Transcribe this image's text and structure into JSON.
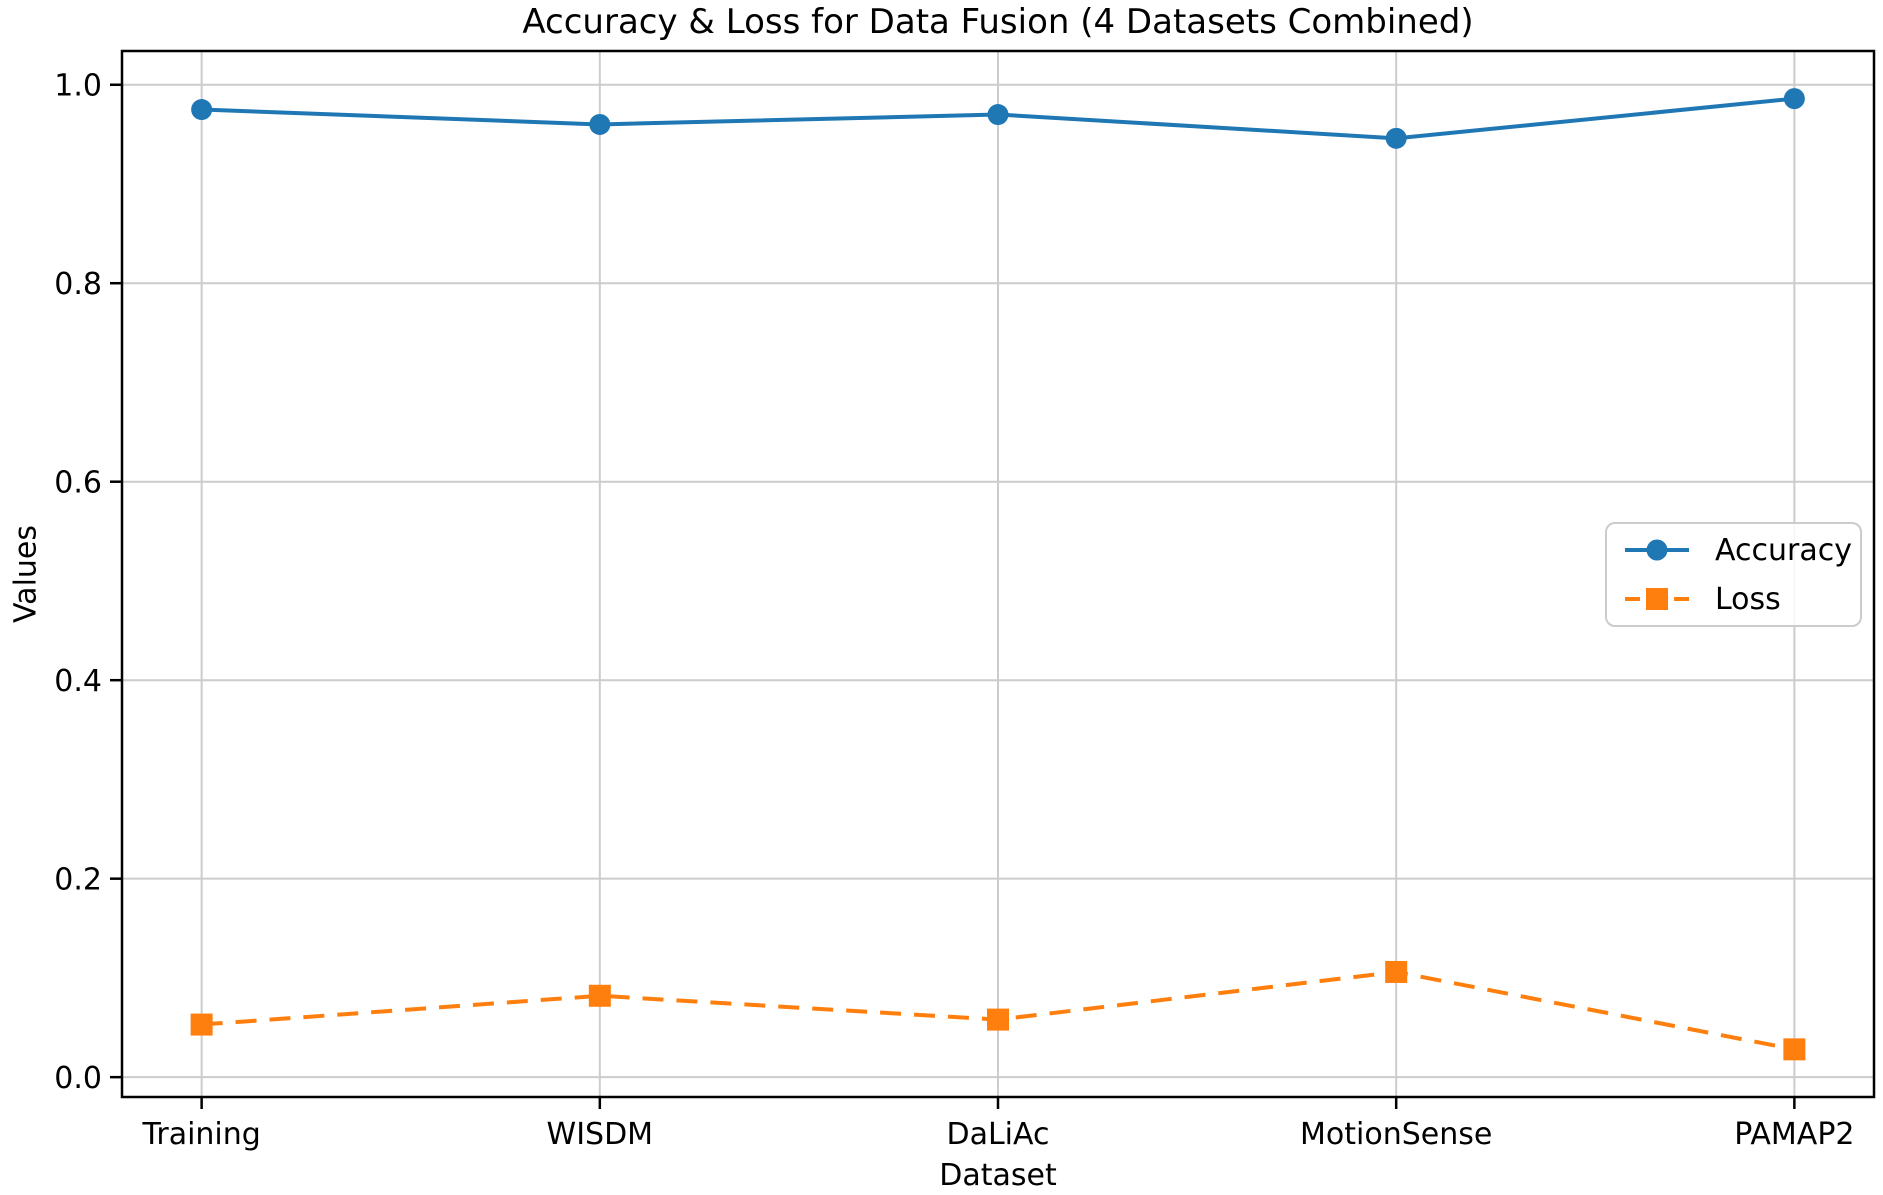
{
  "chart_data": {
    "type": "line",
    "title": "Accuracy & Loss for Data Fusion (4 Datasets Combined)",
    "xlabel": "Dataset",
    "ylabel": "Values",
    "categories": [
      "Training",
      "WISDM",
      "DaLiAc",
      "MotionSense",
      "PAMAP2"
    ],
    "series": [
      {
        "name": "Accuracy",
        "values": [
          0.975,
          0.96,
          0.97,
          0.946,
          0.986
        ],
        "color": "#1f77b4",
        "marker": "circle",
        "line_style": "solid"
      },
      {
        "name": "Loss",
        "values": [
          0.053,
          0.082,
          0.058,
          0.106,
          0.028
        ],
        "color": "#ff7f0e",
        "marker": "square",
        "line_style": "dashed"
      }
    ],
    "yticks": [
      0.0,
      0.2,
      0.4,
      0.6,
      0.8,
      1.0
    ],
    "ytick_labels": [
      "0.0",
      "0.2",
      "0.4",
      "0.6",
      "0.8",
      "1.0"
    ],
    "ylim": [
      -0.02,
      1.034
    ],
    "xlim": [
      -0.2,
      4.2
    ],
    "grid": true,
    "grid_color": "#cccccc",
    "spine_color": "#000000",
    "text_color": "#000000",
    "legend_position": "right-middle"
  }
}
